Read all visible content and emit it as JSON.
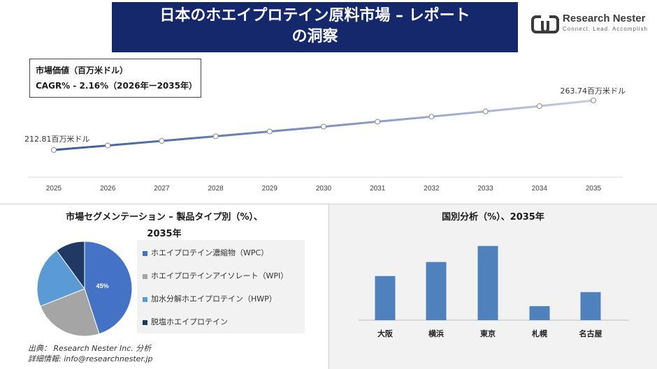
{
  "header": {
    "title_line1": "日本のホエイプロテイン原料市場 – レポート",
    "title_line2": "の洞察",
    "logo_name": "Research Nester",
    "logo_tagline": "Connect. Lead. Accomplish"
  },
  "market_box": {
    "line1": "市場価値（百万米ドル）",
    "line2": "CAGR% - 2.16%（2026年ー2035年）"
  },
  "segment": {
    "title_line1": "市場セグメンテーション – 製品タイプ別（%）、",
    "title_line2": "2035年"
  },
  "country": {
    "title": "国別分析（%）、2035年"
  },
  "source": {
    "line1": "出典： Research Nester Inc. 分析",
    "line2": "詳細情報: info@researchnester.jp"
  },
  "chart_data": [
    {
      "type": "line",
      "x": [
        "2025",
        "2026",
        "2027",
        "2028",
        "2029",
        "2030",
        "2031",
        "2032",
        "2033",
        "2034",
        "2035"
      ],
      "values": [
        212.81,
        217.4,
        222.1,
        226.9,
        231.8,
        236.8,
        241.9,
        247.1,
        252.4,
        257.9,
        263.74
      ],
      "start_label": "212.81百万米ドル",
      "end_label": "263.74百万米ドル",
      "colors": {
        "start": "#3b5a9a",
        "end": "#c5cde0"
      }
    },
    {
      "type": "pie",
      "series": [
        {
          "name": "ホエイプロテイン濃縮物（WPC）",
          "value": 45,
          "label": "45%",
          "color": "#4472c4"
        },
        {
          "name": "ホエイプロテインアイソレート（WPI）",
          "value": 24,
          "label": "",
          "color": "#a5a5a5"
        },
        {
          "name": "加水分解ホエイプロテイン（HWP）",
          "value": 21,
          "label": "",
          "color": "#5b9bd5"
        },
        {
          "name": "脱塩ホエイプロテイン",
          "value": 10,
          "label": "",
          "color": "#203864"
        }
      ]
    },
    {
      "type": "bar",
      "categories": [
        "大阪",
        "横浜",
        "東京",
        "札幌",
        "名古屋"
      ],
      "values": [
        22,
        29,
        37,
        7,
        14
      ],
      "ylim": [
        0,
        40
      ],
      "color": "#4f81bd"
    }
  ]
}
